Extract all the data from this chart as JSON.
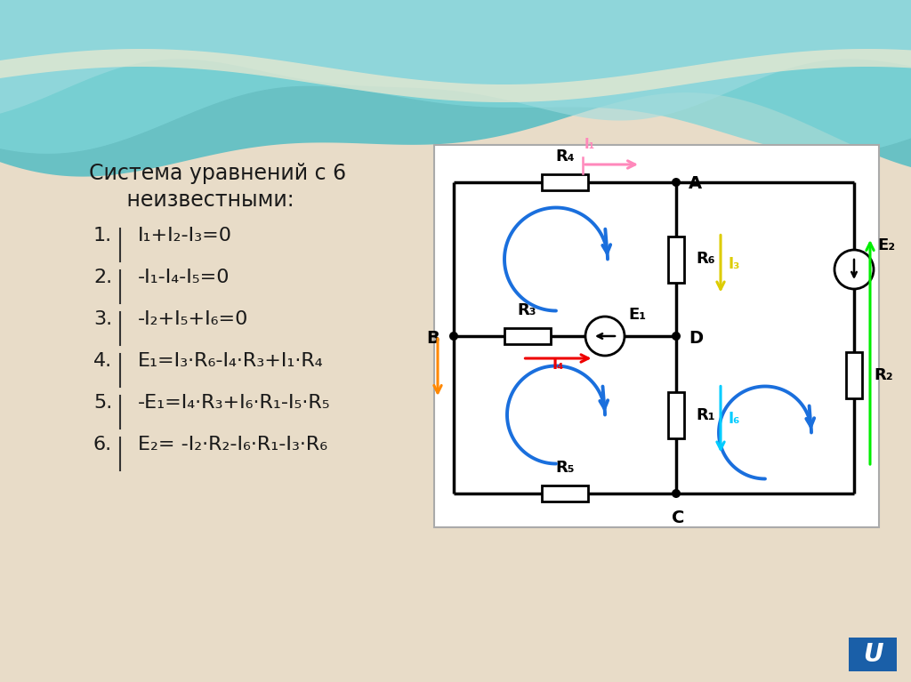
{
  "bg_color": "#e8dcc8",
  "wave_color1": "#6dc8cc",
  "wave_color2": "#90d4d8",
  "wave_color3": "#b8e4e8",
  "wave_cream": "#e8dcc8",
  "text_color": "#1a1a1a",
  "circuit_bg": "#ffffff",
  "circuit_border": "#999999",
  "wire_color": "#000000",
  "arrow_i1_color": "#ff88bb",
  "arrow_i2_color": "#ff8800",
  "arrow_i3_color": "#ddcc00",
  "arrow_i4_color": "#ee0000",
  "arrow_i5_color": "#00ccff",
  "arrow_i6_color": "#00ee00",
  "loop_color": "#1a6fdd",
  "logo_bg": "#1a5fa8",
  "logo_text": "#ffffff",
  "title_line1": "Система уравнений с 6",
  "title_line2": "   неизвестными:",
  "equations": [
    "I₁+I₂-I₃=0",
    "-I₁-I₄-I₅=0",
    "-I₂+I₅+I₆=0",
    "E₁=I₃·R₆-I₄·R₃+I₁·R₄",
    "-E₁=I₄·R₃+I₆·R₁-I₅·R₅",
    "E₂= -I₂·R₂-I₆·R₁-I₃·R₆"
  ],
  "eq_numbers": [
    "1.",
    "2.",
    "3.",
    "4.",
    "5.",
    "6."
  ]
}
